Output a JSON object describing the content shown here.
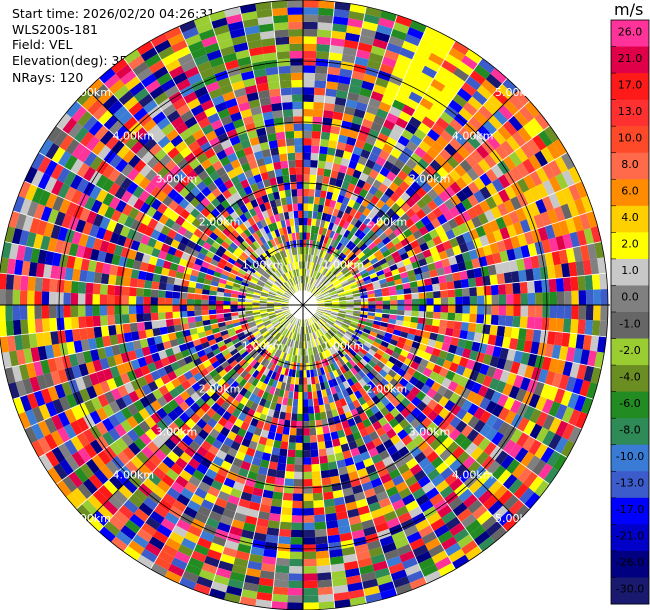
{
  "header": {
    "start_time_label": "Start time: 2026/02/20 04:26:31",
    "site_label": "WLS200s-181",
    "field_label": "Field: VEL",
    "elevation_label": "Elevation(deg): 35.00",
    "nrays_label": "NRays: 120"
  },
  "colorbar": {
    "unit": "m/s",
    "ticks": [
      "26.0",
      "21.0",
      "17.0",
      "13.0",
      "10.0",
      "8.0",
      "6.0",
      "4.0",
      "2.0",
      "1.0",
      "0.0",
      "-1.0",
      "-2.0",
      "-4.0",
      "-6.0",
      "-8.0",
      "-10.0",
      "-13.0",
      "-17.0",
      "-21.0",
      "-26.0",
      "-30.0"
    ],
    "colors": [
      "#ff3399",
      "#e0004a",
      "#ff1a1a",
      "#ff3030",
      "#ff4a2a",
      "#ff6a4a",
      "#ff8c00",
      "#ffd000",
      "#ffff00",
      "#c8c8c8",
      "#808080",
      "#666666",
      "#9acd32",
      "#6b8e23",
      "#228b22",
      "#2e8b57",
      "#3a7bd5",
      "#3c5ccc",
      "#0000ff",
      "#0000c8",
      "#000080",
      "#191970"
    ]
  },
  "chart_data": {
    "type": "polar-ppi",
    "field": "VEL",
    "nrays": 120,
    "elevation_deg": 35.0,
    "range_rings_km": [
      1,
      2,
      3,
      4,
      5
    ],
    "ring_labels": [
      "1.00km",
      "2.00km",
      "3.00km",
      "4.00km",
      "5.00km"
    ],
    "units": "m/s",
    "value_range": [
      -30,
      26
    ]
  }
}
